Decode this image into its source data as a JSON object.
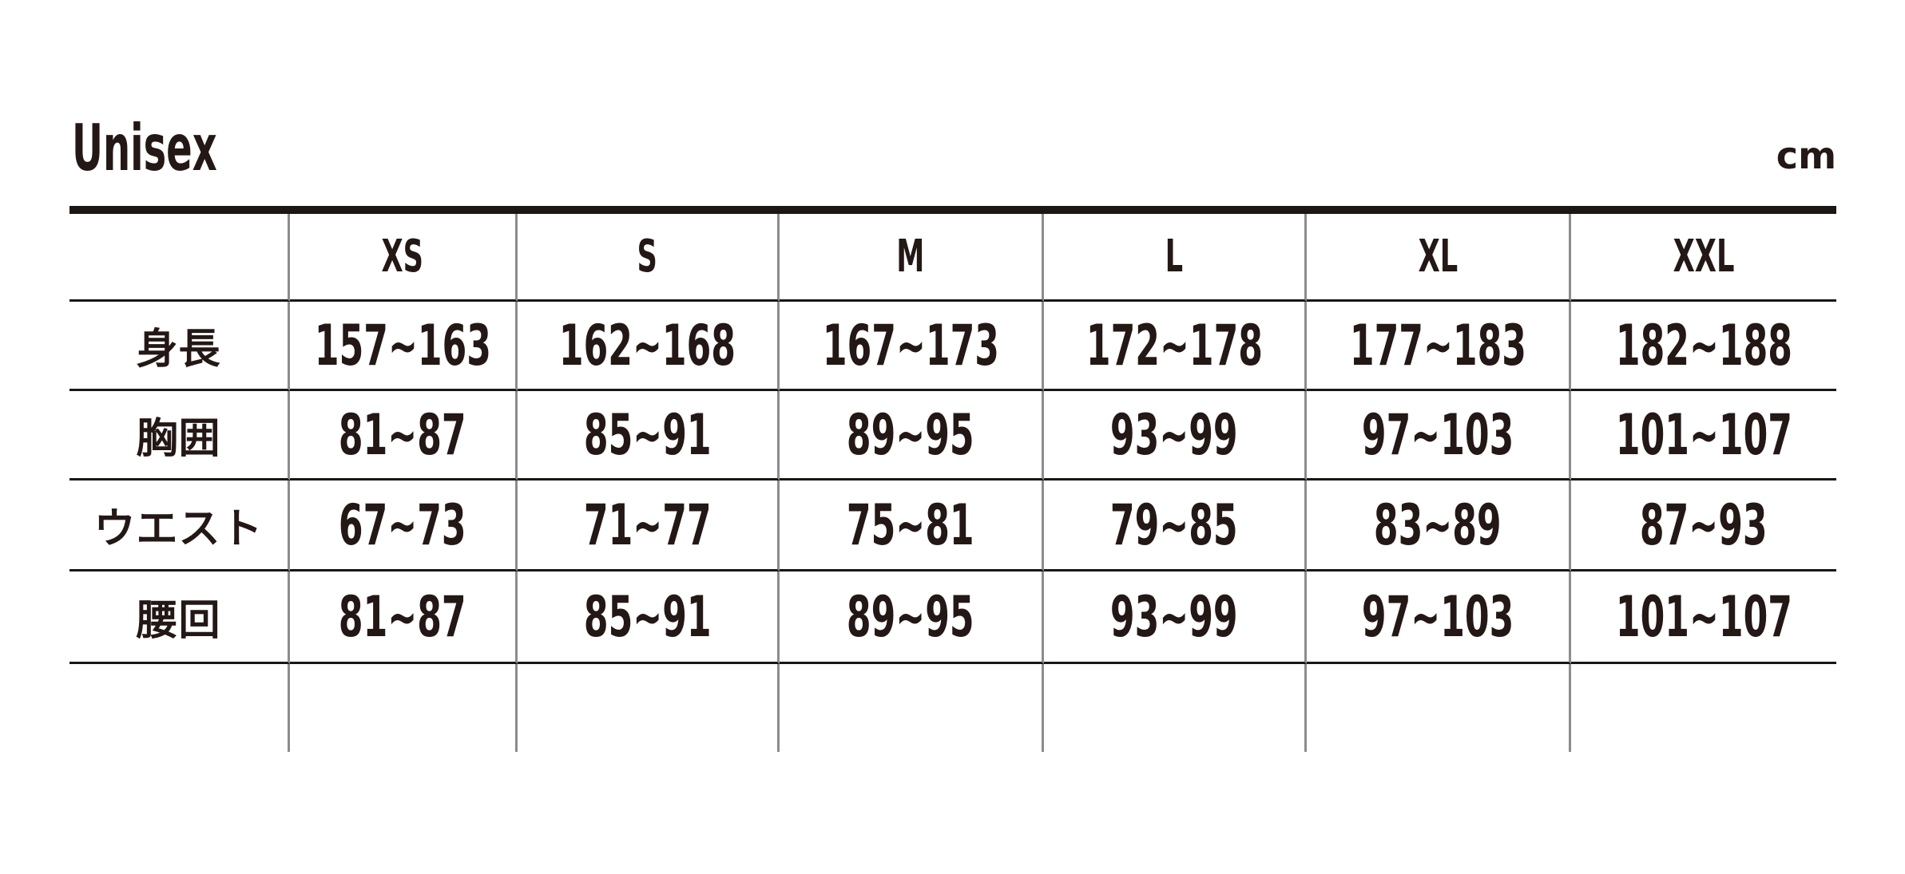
{
  "page": {
    "title": "Unisex",
    "unit_label": "cm"
  },
  "size_chart": {
    "columns": [
      "XS",
      "S",
      "M",
      "L",
      "XL",
      "XXL"
    ],
    "rows": [
      {
        "label": "身長",
        "values": [
          "157~163",
          "162~168",
          "167~173",
          "172~178",
          "177~183",
          "182~188"
        ]
      },
      {
        "label": "胸囲",
        "values": [
          "81~87",
          "85~91",
          "89~95",
          "93~99",
          "97~103",
          "101~107"
        ]
      },
      {
        "label": "ウエスト",
        "values": [
          "67~73",
          "71~77",
          "75~81",
          "79~85",
          "83~89",
          "87~93"
        ]
      },
      {
        "label": "腰回",
        "values": [
          "81~87",
          "85~91",
          "89~95",
          "93~99",
          "97~103",
          "101~107"
        ]
      }
    ]
  },
  "colors": {
    "ink": "#231815",
    "rule_black": "#1a1613",
    "divider_gray": "#8c8c8c",
    "background": "#ffffff"
  }
}
